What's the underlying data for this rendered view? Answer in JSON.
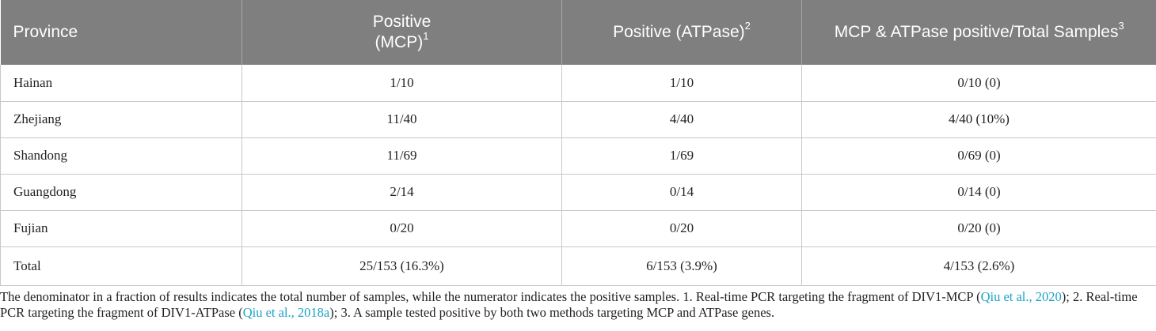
{
  "table": {
    "headers": {
      "province": "Province",
      "mcp_line1": "Positive",
      "mcp_line2": "(MCP)",
      "mcp_sup": "1",
      "atpase": "Positive (ATPase)",
      "atpase_sup": "2",
      "both": "MCP & ATPase positive/Total Samples",
      "both_sup": "3"
    },
    "rows": [
      {
        "province": "Hainan",
        "mcp": "1/10",
        "atpase": "1/10",
        "both": "0/10 (0)"
      },
      {
        "province": "Zhejiang",
        "mcp": "11/40",
        "atpase": "4/40",
        "both": "4/40 (10%)"
      },
      {
        "province": "Shandong",
        "mcp": "11/69",
        "atpase": "1/69",
        "both": "0/69 (0)"
      },
      {
        "province": "Guangdong",
        "mcp": "2/14",
        "atpase": "0/14",
        "both": "0/14 (0)"
      },
      {
        "province": "Fujian",
        "mcp": "0/20",
        "atpase": "0/20",
        "both": "0/20 (0)"
      },
      {
        "province": "Total",
        "mcp": "25/153 (16.3%)",
        "atpase": "6/153 (3.9%)",
        "both": "4/153 (2.6%)"
      }
    ]
  },
  "footnote": {
    "p1": "The denominator in a fraction of results indicates the total number of samples, while the numerator indicates the positive samples. 1. Real-time PCR targeting the fragment of DIV1-MCP (",
    "cite1": "Qiu et al., 2020",
    "p2": "); 2. Real-time PCR targeting the fragment of DIV1-ATPase (",
    "cite2": "Qiu et al., 2018a",
    "p3": "); 3. A sample tested positive by both two methods targeting MCP and ATPase genes.",
    "link_color": "#1aa3c8"
  },
  "colors": {
    "header_bg": "#7f7f7f",
    "header_text": "#ffffff",
    "grid": "#c8c8c8"
  }
}
